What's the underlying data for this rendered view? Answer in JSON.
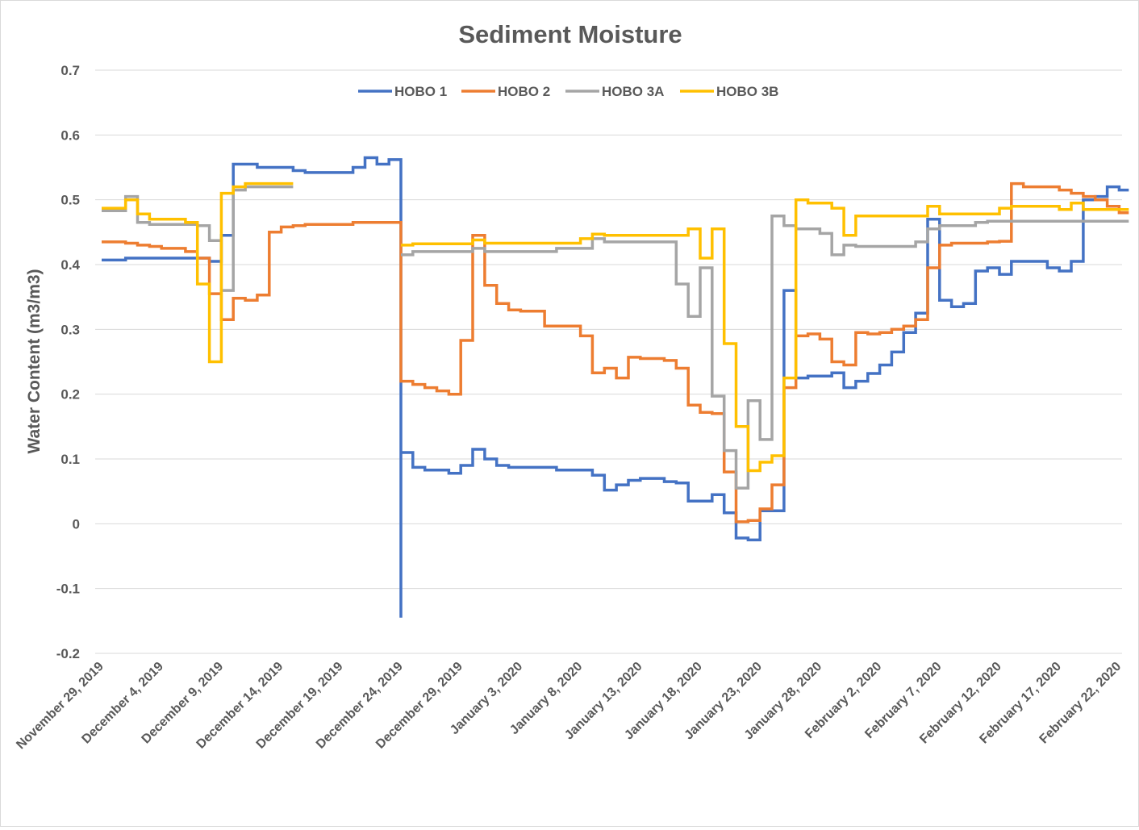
{
  "chart_data": {
    "type": "line",
    "style": "step",
    "title": "Sediment Moisture",
    "xlabel": "",
    "ylabel": "Water Content (m3/m3)",
    "ylim": [
      -0.2,
      0.7
    ],
    "yticks": [
      "0.7",
      "0.6",
      "0.5",
      "0.4",
      "0.3",
      "0.2",
      "0.1",
      "0",
      "-0.1",
      "-0.2"
    ],
    "xlim": [
      "2019-11-29",
      "2020-02-22"
    ],
    "xticks": [
      "November 29, 2019",
      "December 4, 2019",
      "December 9, 2019",
      "December 14, 2019",
      "December 19, 2019",
      "December 24, 2019",
      "December 29, 2019",
      "January 3, 2020",
      "January 8, 2020",
      "January 13, 2020",
      "January 18, 2020",
      "January 23, 2020",
      "January 28, 2020",
      "February 2, 2020",
      "February 7, 2020",
      "February 12, 2020",
      "February 17, 2020",
      "February 22, 2020"
    ],
    "grid": true,
    "legend_position": "top",
    "series": [
      {
        "name": "HOBO 1",
        "color": "#4472C4",
        "points": [
          [
            "2019-11-29",
            0.407
          ],
          [
            "2019-12-01",
            0.41
          ],
          [
            "2019-12-08",
            0.405
          ],
          [
            "2019-12-09",
            0.445
          ],
          [
            "2019-12-10",
            0.555
          ],
          [
            "2019-12-12",
            0.55
          ],
          [
            "2019-12-15",
            0.545
          ],
          [
            "2019-12-16",
            0.542
          ],
          [
            "2019-12-20",
            0.55
          ],
          [
            "2019-12-21",
            0.565
          ],
          [
            "2019-12-22",
            0.555
          ],
          [
            "2019-12-23",
            0.562
          ],
          [
            "2019-12-24",
            -0.145
          ],
          [
            "2019-12-24",
            0.11
          ],
          [
            "2019-12-25",
            0.087
          ],
          [
            "2019-12-26",
            0.083
          ],
          [
            "2019-12-28",
            0.078
          ],
          [
            "2019-12-29",
            0.09
          ],
          [
            "2019-12-30",
            0.115
          ],
          [
            "2019-12-31",
            0.1
          ],
          [
            "2020-01-01",
            0.09
          ],
          [
            "2020-01-02",
            0.087
          ],
          [
            "2020-01-06",
            0.083
          ],
          [
            "2020-01-09",
            0.075
          ],
          [
            "2020-01-10",
            0.052
          ],
          [
            "2020-01-11",
            0.06
          ],
          [
            "2020-01-12",
            0.067
          ],
          [
            "2020-01-13",
            0.07
          ],
          [
            "2020-01-15",
            0.065
          ],
          [
            "2020-01-16",
            0.063
          ],
          [
            "2020-01-17",
            0.035
          ],
          [
            "2020-01-19",
            0.045
          ],
          [
            "2020-01-20",
            0.017
          ],
          [
            "2020-01-21",
            -0.022
          ],
          [
            "2020-01-22",
            -0.025
          ],
          [
            "2020-01-23",
            0.02
          ],
          [
            "2020-01-25",
            0.36
          ],
          [
            "2020-01-26",
            0.225
          ],
          [
            "2020-01-27",
            0.228
          ],
          [
            "2020-01-29",
            0.233
          ],
          [
            "2020-01-30",
            0.21
          ],
          [
            "2020-01-31",
            0.22
          ],
          [
            "2020-02-01",
            0.232
          ],
          [
            "2020-02-02",
            0.245
          ],
          [
            "2020-02-03",
            0.265
          ],
          [
            "2020-02-04",
            0.295
          ],
          [
            "2020-02-05",
            0.325
          ],
          [
            "2020-02-06",
            0.47
          ],
          [
            "2020-02-07",
            0.345
          ],
          [
            "2020-02-08",
            0.335
          ],
          [
            "2020-02-09",
            0.34
          ],
          [
            "2020-02-10",
            0.39
          ],
          [
            "2020-02-11",
            0.395
          ],
          [
            "2020-02-12",
            0.385
          ],
          [
            "2020-02-13",
            0.405
          ],
          [
            "2020-02-16",
            0.395
          ],
          [
            "2020-02-17",
            0.39
          ],
          [
            "2020-02-18",
            0.405
          ],
          [
            "2020-02-19",
            0.5
          ],
          [
            "2020-02-20",
            0.505
          ],
          [
            "2020-02-21",
            0.52
          ],
          [
            "2020-02-22",
            0.515
          ]
        ]
      },
      {
        "name": "HOBO 2",
        "color": "#ED7D31",
        "points": [
          [
            "2019-11-29",
            0.435
          ],
          [
            "2019-12-01",
            0.433
          ],
          [
            "2019-12-02",
            0.43
          ],
          [
            "2019-12-03",
            0.428
          ],
          [
            "2019-12-04",
            0.425
          ],
          [
            "2019-12-06",
            0.42
          ],
          [
            "2019-12-07",
            0.41
          ],
          [
            "2019-12-08",
            0.355
          ],
          [
            "2019-12-09",
            0.315
          ],
          [
            "2019-12-10",
            0.348
          ],
          [
            "2019-12-11",
            0.345
          ],
          [
            "2019-12-12",
            0.353
          ],
          [
            "2019-12-13",
            0.45
          ],
          [
            "2019-12-14",
            0.458
          ],
          [
            "2019-12-15",
            0.46
          ],
          [
            "2019-12-16",
            0.462
          ],
          [
            "2019-12-20",
            0.465
          ],
          [
            "2019-12-24",
            0.22
          ],
          [
            "2019-12-25",
            0.215
          ],
          [
            "2019-12-26",
            0.21
          ],
          [
            "2019-12-27",
            0.205
          ],
          [
            "2019-12-28",
            0.2
          ],
          [
            "2019-12-29",
            0.283
          ],
          [
            "2019-12-30",
            0.445
          ],
          [
            "2019-12-31",
            0.368
          ],
          [
            "2020-01-01",
            0.34
          ],
          [
            "2020-01-02",
            0.33
          ],
          [
            "2020-01-03",
            0.328
          ],
          [
            "2020-01-05",
            0.305
          ],
          [
            "2020-01-08",
            0.29
          ],
          [
            "2020-01-09",
            0.233
          ],
          [
            "2020-01-10",
            0.24
          ],
          [
            "2020-01-11",
            0.225
          ],
          [
            "2020-01-12",
            0.257
          ],
          [
            "2020-01-13",
            0.255
          ],
          [
            "2020-01-15",
            0.252
          ],
          [
            "2020-01-16",
            0.24
          ],
          [
            "2020-01-17",
            0.183
          ],
          [
            "2020-01-18",
            0.172
          ],
          [
            "2020-01-19",
            0.17
          ],
          [
            "2020-01-20",
            0.08
          ],
          [
            "2020-01-21",
            0.003
          ],
          [
            "2020-01-22",
            0.005
          ],
          [
            "2020-01-23",
            0.023
          ],
          [
            "2020-01-24",
            0.06
          ],
          [
            "2020-01-25",
            0.21
          ],
          [
            "2020-01-26",
            0.29
          ],
          [
            "2020-01-27",
            0.293
          ],
          [
            "2020-01-28",
            0.285
          ],
          [
            "2020-01-29",
            0.25
          ],
          [
            "2020-01-30",
            0.245
          ],
          [
            "2020-01-31",
            0.295
          ],
          [
            "2020-02-01",
            0.293
          ],
          [
            "2020-02-02",
            0.295
          ],
          [
            "2020-02-03",
            0.3
          ],
          [
            "2020-02-04",
            0.305
          ],
          [
            "2020-02-05",
            0.315
          ],
          [
            "2020-02-06",
            0.395
          ],
          [
            "2020-02-07",
            0.43
          ],
          [
            "2020-02-08",
            0.433
          ],
          [
            "2020-02-11",
            0.435
          ],
          [
            "2020-02-12",
            0.436
          ],
          [
            "2020-02-13",
            0.525
          ],
          [
            "2020-02-14",
            0.52
          ],
          [
            "2020-02-17",
            0.515
          ],
          [
            "2020-02-18",
            0.51
          ],
          [
            "2020-02-19",
            0.505
          ],
          [
            "2020-02-20",
            0.5
          ],
          [
            "2020-02-21",
            0.49
          ],
          [
            "2020-02-22",
            0.48
          ]
        ]
      },
      {
        "name": "HOBO 3A",
        "color": "#A5A5A5",
        "points": [
          [
            "2019-11-29",
            0.483
          ],
          [
            "2019-12-01",
            0.505
          ],
          [
            "2019-12-02",
            0.465
          ],
          [
            "2019-12-03",
            0.462
          ],
          [
            "2019-12-07",
            0.46
          ],
          [
            "2019-12-08",
            0.437
          ],
          [
            "2019-12-09",
            0.36
          ],
          [
            "2019-12-10",
            0.515
          ],
          [
            "2019-12-11",
            0.52
          ],
          [
            "2019-12-15",
            null
          ],
          [
            "2019-12-24",
            0.415
          ],
          [
            "2019-12-25",
            0.42
          ],
          [
            "2019-12-30",
            0.425
          ],
          [
            "2019-12-31",
            0.42
          ],
          [
            "2020-01-06",
            0.425
          ],
          [
            "2020-01-09",
            0.44
          ],
          [
            "2020-01-10",
            0.435
          ],
          [
            "2020-01-16",
            0.37
          ],
          [
            "2020-01-17",
            0.32
          ],
          [
            "2020-01-18",
            0.395
          ],
          [
            "2020-01-19",
            0.197
          ],
          [
            "2020-01-20",
            0.113
          ],
          [
            "2020-01-21",
            0.055
          ],
          [
            "2020-01-22",
            0.19
          ],
          [
            "2020-01-23",
            0.13
          ],
          [
            "2020-01-24",
            0.475
          ],
          [
            "2020-01-25",
            0.46
          ],
          [
            "2020-01-26",
            0.455
          ],
          [
            "2020-01-28",
            0.448
          ],
          [
            "2020-01-29",
            0.415
          ],
          [
            "2020-01-30",
            0.43
          ],
          [
            "2020-01-31",
            0.428
          ],
          [
            "2020-02-05",
            0.435
          ],
          [
            "2020-02-06",
            0.455
          ],
          [
            "2020-02-07",
            0.46
          ],
          [
            "2020-02-10",
            0.465
          ],
          [
            "2020-02-11",
            0.467
          ],
          [
            "2020-02-22",
            0.467
          ]
        ]
      },
      {
        "name": "HOBO 3B",
        "color": "#FFC000",
        "points": [
          [
            "2019-11-29",
            0.487
          ],
          [
            "2019-12-01",
            0.5
          ],
          [
            "2019-12-02",
            0.478
          ],
          [
            "2019-12-03",
            0.47
          ],
          [
            "2019-12-06",
            0.465
          ],
          [
            "2019-12-07",
            0.37
          ],
          [
            "2019-12-08",
            0.25
          ],
          [
            "2019-12-09",
            0.51
          ],
          [
            "2019-12-10",
            0.52
          ],
          [
            "2019-12-11",
            0.525
          ],
          [
            "2019-12-15",
            null
          ],
          [
            "2019-12-24",
            0.43
          ],
          [
            "2019-12-25",
            0.432
          ],
          [
            "2019-12-30",
            0.438
          ],
          [
            "2019-12-31",
            0.433
          ],
          [
            "2020-01-08",
            0.44
          ],
          [
            "2020-01-09",
            0.447
          ],
          [
            "2020-01-10",
            0.445
          ],
          [
            "2020-01-17",
            0.455
          ],
          [
            "2020-01-18",
            0.41
          ],
          [
            "2020-01-19",
            0.455
          ],
          [
            "2020-01-20",
            0.278
          ],
          [
            "2020-01-21",
            0.15
          ],
          [
            "2020-01-22",
            0.082
          ],
          [
            "2020-01-23",
            0.095
          ],
          [
            "2020-01-24",
            0.105
          ],
          [
            "2020-01-25",
            0.225
          ],
          [
            "2020-01-26",
            0.5
          ],
          [
            "2020-01-27",
            0.495
          ],
          [
            "2020-01-29",
            0.487
          ],
          [
            "2020-01-30",
            0.445
          ],
          [
            "2020-01-31",
            0.475
          ],
          [
            "2020-02-06",
            0.49
          ],
          [
            "2020-02-07",
            0.478
          ],
          [
            "2020-02-12",
            0.487
          ],
          [
            "2020-02-13",
            0.49
          ],
          [
            "2020-02-17",
            0.485
          ],
          [
            "2020-02-18",
            0.495
          ],
          [
            "2020-02-19",
            0.485
          ],
          [
            "2020-02-22",
            0.485
          ]
        ]
      }
    ]
  }
}
